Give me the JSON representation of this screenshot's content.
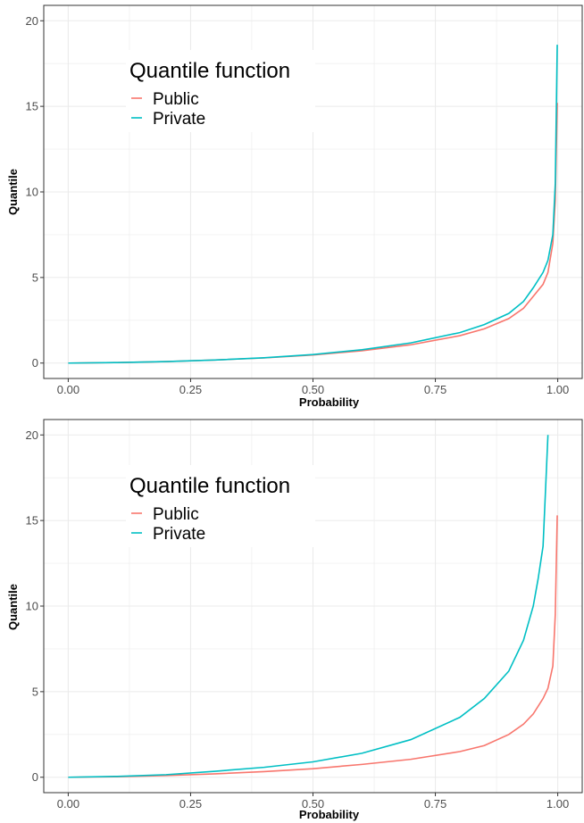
{
  "chart_data": [
    {
      "type": "line",
      "title": "",
      "xlabel": "Probability",
      "ylabel": "Quantile",
      "xlim": [
        0,
        1
      ],
      "ylim": [
        0,
        20
      ],
      "x_ticks": [
        "0.00",
        "0.25",
        "0.50",
        "0.75",
        "1.00"
      ],
      "y_ticks": [
        "0",
        "5",
        "10",
        "15",
        "20"
      ],
      "grid": true,
      "legend": {
        "title": "Quantile function",
        "placement": "top-left"
      },
      "series": [
        {
          "name": "Public",
          "color": "#F8766D",
          "x": [
            0.0,
            0.1,
            0.2,
            0.3,
            0.4,
            0.5,
            0.6,
            0.7,
            0.8,
            0.85,
            0.9,
            0.93,
            0.95,
            0.97,
            0.98,
            0.99,
            0.995,
            0.999
          ],
          "y": [
            0.0,
            0.03,
            0.09,
            0.18,
            0.3,
            0.47,
            0.72,
            1.07,
            1.6,
            2.0,
            2.6,
            3.2,
            3.9,
            4.6,
            5.3,
            7.0,
            9.5,
            15.2
          ]
        },
        {
          "name": "Private",
          "color": "#00BFC4",
          "x": [
            0.0,
            0.1,
            0.2,
            0.3,
            0.4,
            0.5,
            0.6,
            0.7,
            0.8,
            0.85,
            0.9,
            0.93,
            0.95,
            0.97,
            0.98,
            0.99,
            0.995,
            0.999
          ],
          "y": [
            0.0,
            0.03,
            0.09,
            0.18,
            0.31,
            0.5,
            0.78,
            1.18,
            1.78,
            2.25,
            2.9,
            3.6,
            4.4,
            5.3,
            6.0,
            7.5,
            10.5,
            18.6
          ]
        }
      ]
    },
    {
      "type": "line",
      "title": "",
      "xlabel": "Probability",
      "ylabel": "Quantile",
      "xlim": [
        0,
        1
      ],
      "ylim": [
        0,
        20
      ],
      "x_ticks": [
        "0.00",
        "0.25",
        "0.50",
        "0.75",
        "1.00"
      ],
      "y_ticks": [
        "0",
        "5",
        "10",
        "15",
        "20"
      ],
      "grid": true,
      "legend": {
        "title": "Quantile function",
        "placement": "top-left"
      },
      "series": [
        {
          "name": "Public",
          "color": "#F8766D",
          "x": [
            0.0,
            0.1,
            0.2,
            0.3,
            0.4,
            0.5,
            0.6,
            0.7,
            0.8,
            0.85,
            0.9,
            0.93,
            0.95,
            0.97,
            0.98,
            0.99,
            0.995,
            0.999
          ],
          "y": [
            0.0,
            0.03,
            0.1,
            0.2,
            0.33,
            0.5,
            0.75,
            1.05,
            1.5,
            1.85,
            2.5,
            3.1,
            3.7,
            4.6,
            5.2,
            6.5,
            9.5,
            15.3
          ]
        },
        {
          "name": "Private",
          "color": "#00BFC4",
          "x": [
            0.0,
            0.1,
            0.2,
            0.3,
            0.4,
            0.5,
            0.6,
            0.7,
            0.8,
            0.85,
            0.9,
            0.93,
            0.95,
            0.96,
            0.97,
            0.98
          ],
          "y": [
            0.0,
            0.05,
            0.15,
            0.35,
            0.58,
            0.9,
            1.4,
            2.2,
            3.5,
            4.6,
            6.2,
            8.0,
            10.0,
            11.6,
            13.5,
            20.0
          ]
        }
      ]
    }
  ]
}
